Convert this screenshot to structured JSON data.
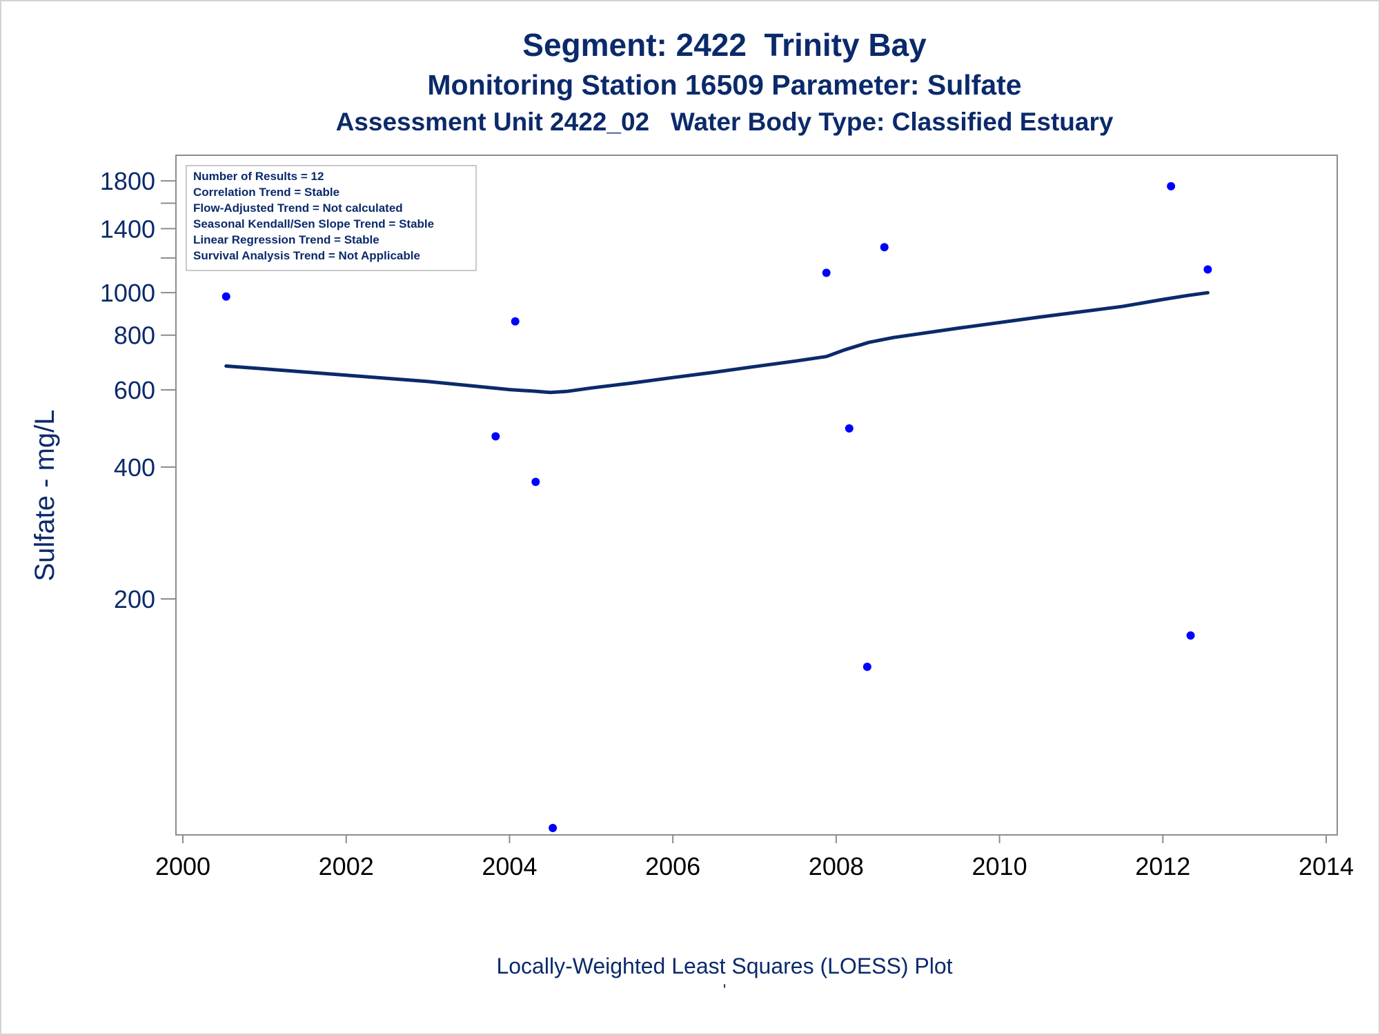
{
  "chart_data": {
    "type": "scatter",
    "title": "Segment: 2422  Trinity Bay",
    "subtitle": "Monitoring Station 16509 Parameter: Sulfate",
    "subtitle2": "Assessment Unit 2422_02   Water Body Type: Classified Estuary",
    "xlabel": "",
    "ylabel": "Sulfate - mg/L",
    "footnote": "Locally-Weighted Least Squares (LOESS) Plot",
    "footnote_mark": "'",
    "y_scale": "log",
    "xlim": [
      2000,
      2014
    ],
    "ylim": [
      60,
      1950
    ],
    "x_ticks": [
      2000,
      2002,
      2004,
      2006,
      2008,
      2010,
      2012,
      2014
    ],
    "x_tick_labels": [
      "2000",
      "2002",
      "2004",
      "2006",
      "2008",
      "2010",
      "2012",
      "2014"
    ],
    "y_ticks": [
      200,
      400,
      600,
      800,
      1000,
      1400,
      1800
    ],
    "y_tick_labels": [
      "200",
      "400",
      "600",
      "800",
      "1000",
      "1400",
      "1800"
    ],
    "y_minor_ticks": [
      1200,
      1600
    ],
    "points": {
      "x": [
        2000.53,
        2003.83,
        2004.07,
        2004.32,
        2004.53,
        2007.88,
        2008.16,
        2008.38,
        2008.59,
        2012.1,
        2012.34,
        2012.55
      ],
      "y": [
        980,
        470,
        860,
        370,
        60,
        1110,
        490,
        140,
        1270,
        1750,
        165,
        1130
      ]
    },
    "loess": {
      "x": [
        2000.53,
        2001.0,
        2002.0,
        2003.0,
        2003.5,
        2004.0,
        2004.3,
        2004.5,
        2004.7,
        2005.0,
        2005.5,
        2006.0,
        2006.5,
        2007.0,
        2007.5,
        2007.88,
        2008.1,
        2008.4,
        2008.7,
        2009.5,
        2010.5,
        2011.5,
        2012.0,
        2012.3,
        2012.55
      ],
      "y": [
        680,
        670,
        648,
        627,
        614,
        601,
        596,
        592,
        595,
        606,
        622,
        640,
        658,
        678,
        698,
        715,
        740,
        770,
        790,
        830,
        880,
        930,
        965,
        985,
        1000
      ]
    },
    "grid": false,
    "legend": {
      "placement": "top-left",
      "entries": [
        "Number of Results = 12",
        "Correlation Trend = Stable",
        "Flow-Adjusted Trend = Not calculated",
        "Seasonal Kendall/Sen Slope Trend = Stable",
        "Linear Regression Trend = Stable",
        "Survival Analysis Trend = Not Applicable"
      ]
    },
    "colors": {
      "points": "#0000ff",
      "line": "#0b2a6b",
      "text": "#0b2a6b",
      "axis": "#8c8c8c"
    }
  }
}
